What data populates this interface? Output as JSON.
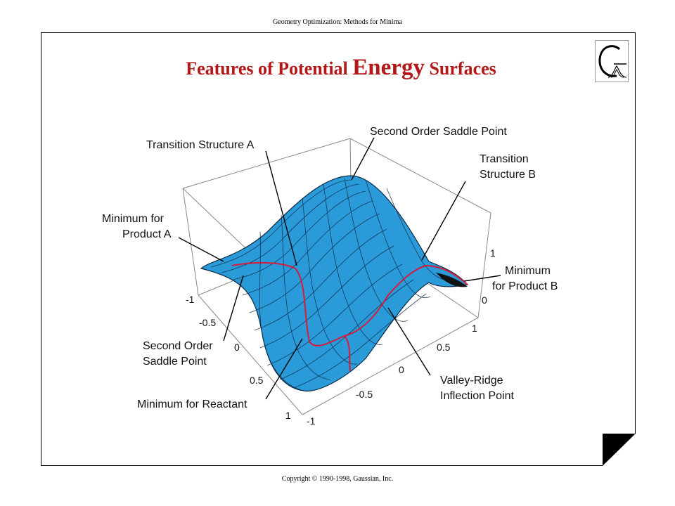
{
  "header": "Geometry Optimization: Methods for Minima",
  "title": {
    "part1": "Features of Potential ",
    "part2": "Energy",
    "part3": " Surfaces"
  },
  "labels": {
    "transition_a": "Transition Structure A",
    "second_order_top": "Second Order Saddle Point",
    "transition_b_1": "Transition",
    "transition_b_2": "Structure B",
    "min_product_a_1": "Minimum for",
    "min_product_a_2": "Product A",
    "min_product_b_1": "Minimum",
    "min_product_b_2": "for Product B",
    "second_order_left_1": "Second Order",
    "second_order_left_2": "Saddle Point",
    "valley_ridge_1": "Valley-Ridge",
    "valley_ridge_2": "Inflection Point",
    "min_reactant": "Minimum for Reactant"
  },
  "ticks": {
    "left_axis": [
      "-1",
      "-0.5",
      "0",
      "0.5",
      "1"
    ],
    "front_axis": [
      "-1",
      "-0.5",
      "0",
      "0.5",
      "1"
    ],
    "z_axis": [
      "1",
      "0"
    ]
  },
  "colors": {
    "title": "#b31818",
    "surface": "#2b9ad8",
    "mesh": "#0b2a45",
    "path": "#d81a3a"
  },
  "logo_icon": "gaussian-logo-icon",
  "corner_icon": "page-corner-icon",
  "footer": "Copyright © 1990-1998, Gaussian, Inc."
}
